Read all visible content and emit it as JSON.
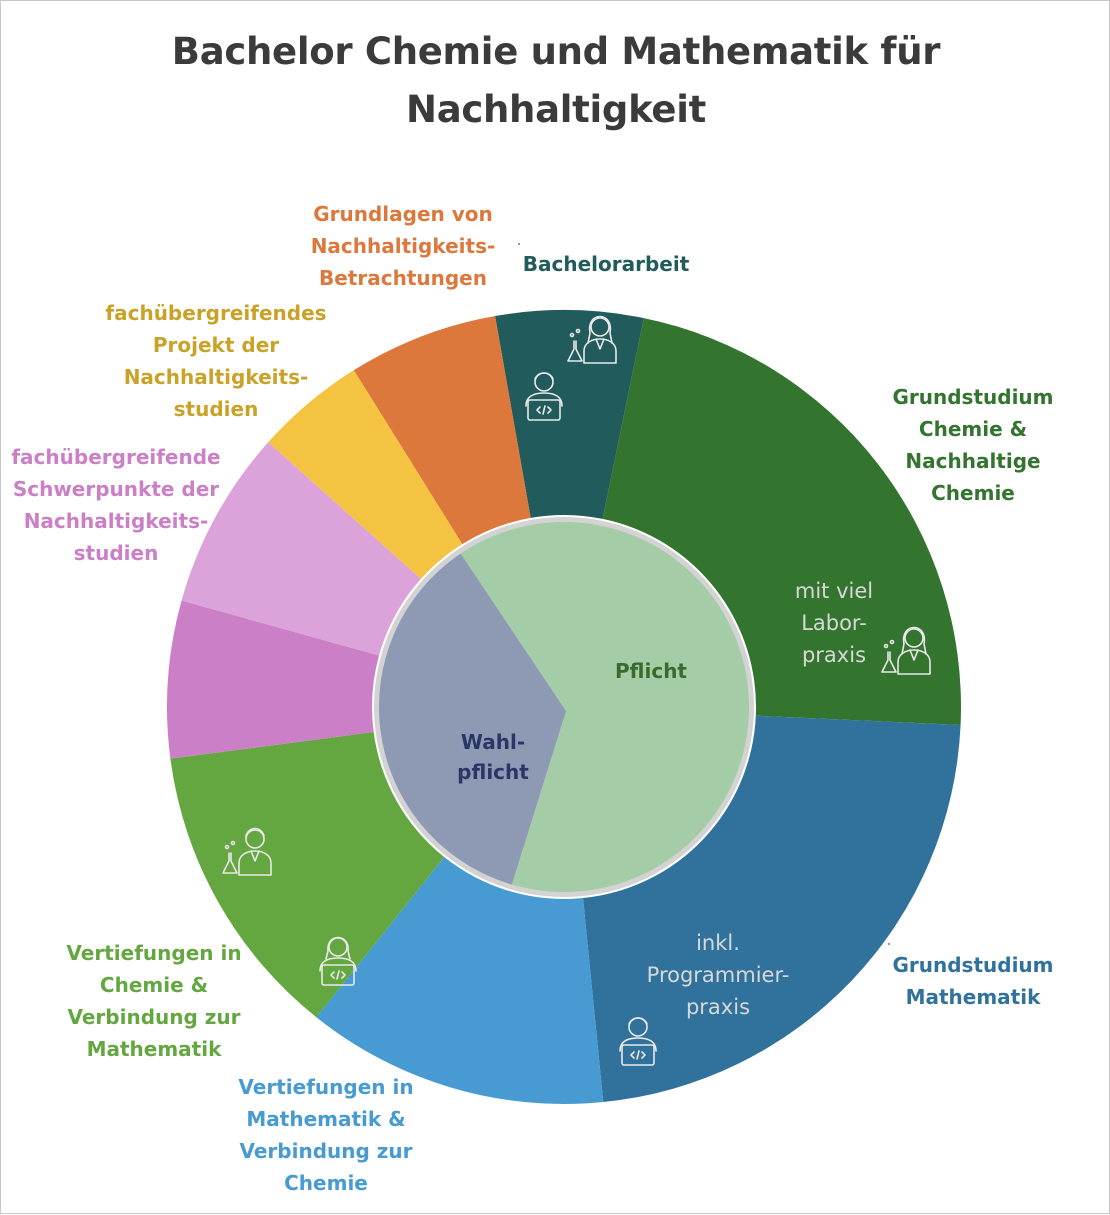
{
  "title": [
    "Bachelor Chemie und Mathematik für",
    "Nachhaltigkeit"
  ],
  "chart_data": {
    "type": "pie",
    "title": "Bachelor Chemie und Mathematik für Nachhaltigkeit",
    "inner": {
      "categories": [
        "Pflicht",
        "Wahlpflicht"
      ],
      "labels": [
        [
          "Pflicht"
        ],
        [
          "Wahl-",
          "pflicht"
        ]
      ],
      "values": [
        64,
        36
      ],
      "colors": [
        "#a3cca7",
        "#8e9ab3"
      ],
      "text_colors": [
        "#3a6b2d",
        "#2b3668"
      ]
    },
    "outer": {
      "categories": [
        "Bachelorarbeit",
        "Grundstudium Chemie & Nachhaltige Chemie",
        "Grundstudium Mathematik",
        "Vertiefungen in Mathematik & Verbindung zur Chemie",
        "Vertiefungen in Chemie & Verbindung zur Mathematik",
        "fachübergreifende Schwerpunkte der Nachhaltigkeitsstudien (Teil 1)",
        "fachübergreifende Schwerpunkte der Nachhaltigkeitsstudien (Teil 2)",
        "fachübergreifendes Projekt der Nachhaltigkeitsstudien",
        "Grundlagen von Nachhaltigkeits-Betrachtungen"
      ],
      "values": [
        6,
        22.5,
        22.7,
        12.3,
        12.2,
        6.4,
        7.3,
        4.5,
        6.1
      ],
      "colors": [
        "#215b5c",
        "#33742e",
        "#31729d",
        "#479bd2",
        "#64a741",
        "#cb7fc6",
        "#dba3d9",
        "#f5c342",
        "#dd783c"
      ]
    },
    "labels": [
      {
        "lines": [
          "Bachelorarbeit"
        ],
        "color": "#215b5c"
      },
      {
        "lines": [
          "Grundstudium",
          "Chemie &",
          "Nachhaltige",
          "Chemie"
        ],
        "color": "#33742e"
      },
      {
        "lines": [
          "Grundstudium",
          "Mathematik"
        ],
        "color": "#31729d"
      },
      {
        "lines": [
          "Vertiefungen in",
          "Mathematik &",
          "Verbindung zur",
          "Chemie"
        ],
        "color": "#479bd2"
      },
      {
        "lines": [
          "Vertiefungen in",
          "Chemie &",
          "Verbindung zur",
          "Mathematik"
        ],
        "color": "#64a741"
      },
      {
        "lines": [
          "fachübergreifende",
          "Schwerpunkte der",
          "Nachhaltigkeits-",
          "studien"
        ],
        "color": "#cb7fc6"
      },
      {
        "lines": [
          "fachübergreifendes",
          "Projekt der",
          "Nachhaltigkeits-",
          "studien"
        ],
        "color": "#c9a227"
      },
      {
        "lines": [
          "Grundlagen von",
          "Nachhaltigkeits-",
          "Betrachtungen"
        ],
        "color": "#dd783c"
      }
    ],
    "annotations": [
      {
        "lines": [
          "mit viel",
          "Labor-",
          "praxis"
        ]
      },
      {
        "lines": [
          "inkl.",
          "Programmier-",
          "praxis"
        ]
      }
    ],
    "icons": [
      "scientist-woman-icon",
      "scientist-woman-icon",
      "coder-man-icon",
      "coder-man-icon",
      "scientist-man-icon",
      "coder-woman-icon"
    ]
  }
}
